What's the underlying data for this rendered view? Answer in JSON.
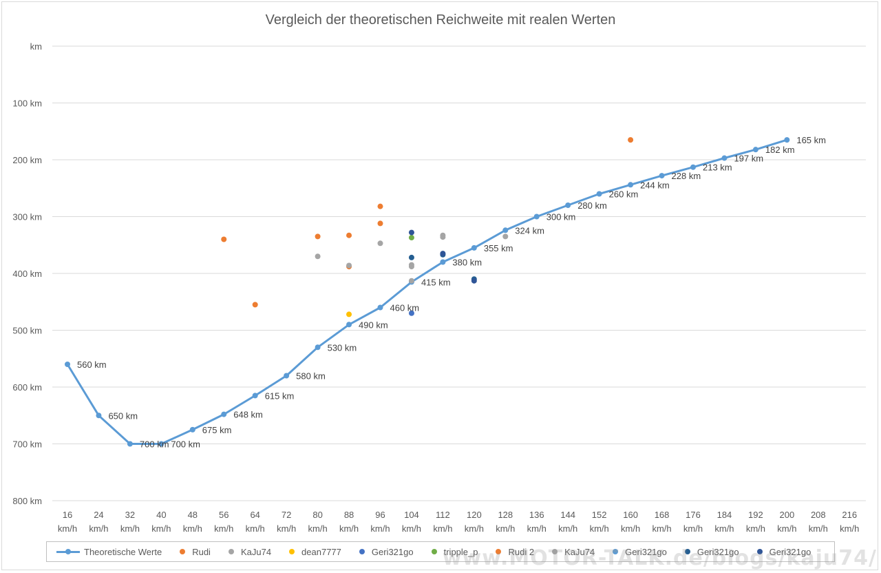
{
  "chart_data": {
    "type": "scatter",
    "title": "Vergleich der theoretischen Reichweite mit realen Werten",
    "y_axis": {
      "reversed": true,
      "ylim": [
        0,
        800
      ],
      "tick_labels": [
        "km",
        "100 km",
        "200 km",
        "300 km",
        "400 km",
        "500 km",
        "600 km",
        "700 km",
        "800 km"
      ]
    },
    "x_axis": {
      "categories": [
        "16",
        "24",
        "32",
        "40",
        "48",
        "56",
        "64",
        "72",
        "80",
        "88",
        "96",
        "104",
        "112",
        "120",
        "128",
        "136",
        "144",
        "152",
        "160",
        "168",
        "176",
        "184",
        "192",
        "200",
        "208",
        "216"
      ],
      "unit_label": "km/h"
    },
    "grid": true,
    "legend_position": "bottom",
    "series": [
      {
        "name": "Theoretische Werte",
        "type": "line",
        "color": "#5b9bd5",
        "x": [
          16,
          24,
          32,
          40,
          48,
          56,
          64,
          72,
          80,
          88,
          96,
          104,
          112,
          120,
          128,
          136,
          144,
          152,
          160,
          168,
          176,
          184,
          192,
          200
        ],
        "y": [
          560,
          650,
          700,
          700,
          675,
          648,
          615,
          580,
          530,
          490,
          460,
          415,
          380,
          355,
          324,
          300,
          280,
          260,
          244,
          228,
          213,
          197,
          182,
          165
        ],
        "labels": [
          "560 km",
          "650 km",
          "700 km",
          "700 km",
          "675 km",
          "648 km",
          "615 km",
          "580 km",
          "530 km",
          "490 km",
          "460 km",
          "415 km",
          "380 km",
          "355 km",
          "324 km",
          "300 km",
          "280 km",
          "260 km",
          "244 km",
          "228 km",
          "213 km",
          "197 km",
          "182 km",
          "165 km"
        ]
      },
      {
        "name": "Rudi",
        "color": "#ed7d31",
        "points": [
          [
            56,
            340
          ],
          [
            64,
            455
          ],
          [
            80,
            335
          ],
          [
            88,
            333
          ],
          [
            96,
            312
          ],
          [
            96,
            282
          ],
          [
            88,
            388
          ],
          [
            160,
            165
          ]
        ]
      },
      {
        "name": "KaJu74",
        "color": "#a5a5a5",
        "points": [
          [
            80,
            370
          ],
          [
            88,
            386
          ],
          [
            96,
            347
          ],
          [
            104,
            388
          ],
          [
            104,
            413
          ],
          [
            112,
            333
          ],
          [
            128,
            335
          ]
        ]
      },
      {
        "name": "dean7777",
        "color": "#ffc000",
        "points": [
          [
            88,
            472
          ]
        ]
      },
      {
        "name": "Geri321go",
        "color": "#4472c4",
        "points": [
          [
            104,
            470
          ]
        ]
      },
      {
        "name": "tripple_p",
        "color": "#70ad47",
        "points": [
          [
            104,
            337
          ]
        ]
      },
      {
        "name": "Rudi 2",
        "color": "#ed7d31",
        "points": []
      },
      {
        "name": "KaJu74",
        "color": "#a5a5a5",
        "points": [
          [
            112,
            336
          ],
          [
            104,
            385
          ]
        ]
      },
      {
        "name": "Geri321go",
        "color": "#5b9bd5",
        "points": []
      },
      {
        "name": "Geri321go",
        "color": "#255e91",
        "points": [
          [
            104,
            372
          ],
          [
            112,
            367
          ],
          [
            120,
            410
          ]
        ]
      },
      {
        "name": "Geri321go",
        "color": "#2f5597",
        "points": [
          [
            104,
            328
          ],
          [
            112,
            365
          ],
          [
            120,
            413
          ]
        ]
      }
    ]
  },
  "watermark": "www.MOTOR-TALK.de/blogs/kaju74/"
}
